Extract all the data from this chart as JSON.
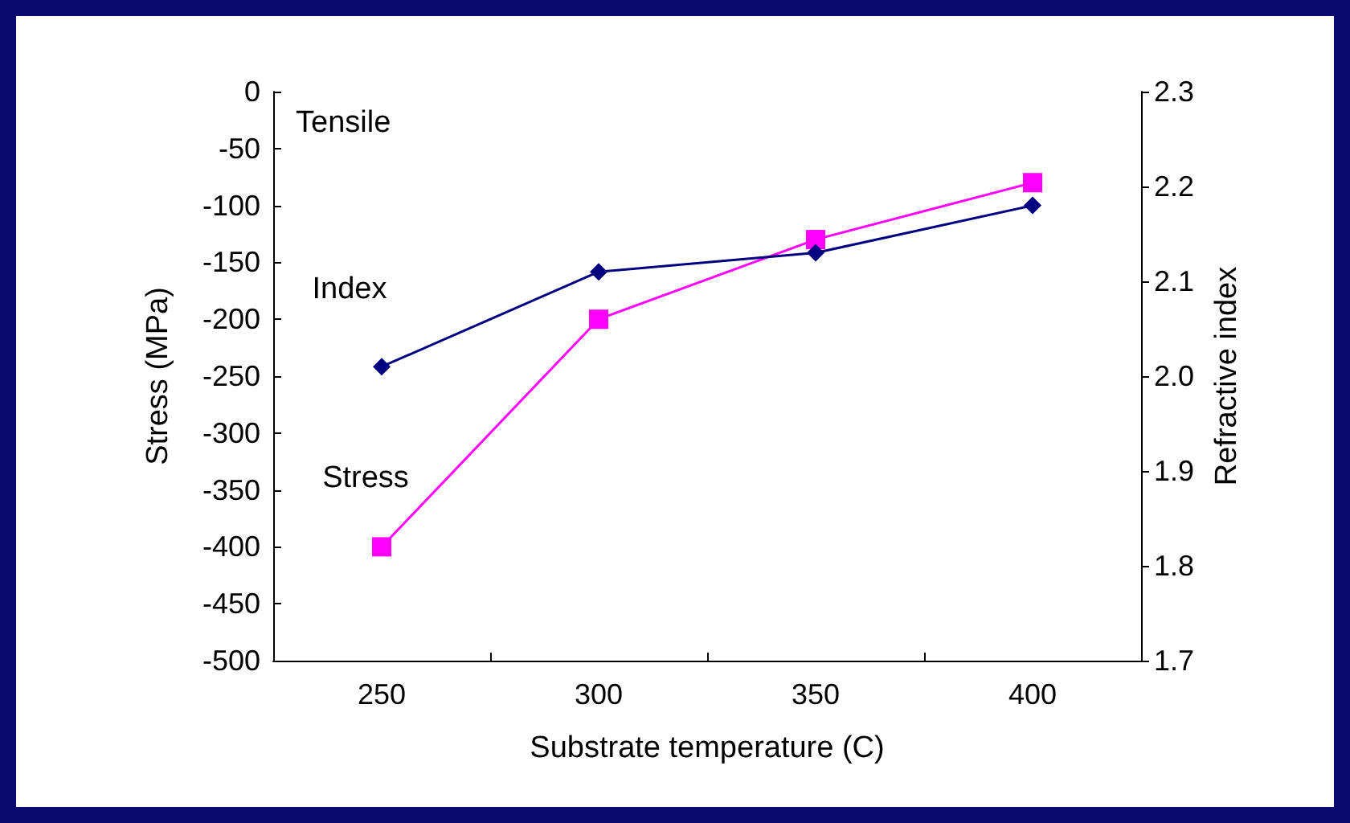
{
  "chart_data": {
    "type": "line",
    "xlabel": "Substrate temperature (C)",
    "ylabel": "Stress (MPa)",
    "y2label": "Refractive index",
    "categories": [
      "250",
      "300",
      "350",
      "400"
    ],
    "series": [
      {
        "name": "Stress",
        "color": "#ff00ff",
        "marker": "square",
        "values": [
          -400,
          -200,
          -130,
          -80
        ]
      },
      {
        "name": "Index",
        "color": "#000080",
        "marker": "diamond",
        "axis": "y2",
        "values": [
          2.01,
          2.11,
          2.13,
          2.18
        ]
      }
    ],
    "ylim": [
      -500,
      0
    ],
    "yticks": [
      -500,
      -450,
      -400,
      -350,
      -300,
      -250,
      -200,
      -150,
      -100,
      -50,
      0
    ],
    "y2lim": [
      1.7,
      2.3
    ],
    "y2ticks": [
      1.7,
      1.8,
      1.9,
      {
        "value": 2,
        "label": "2.0"
      },
      2.1,
      2.2,
      2.3
    ],
    "annotations": [
      "Tensile"
    ],
    "grid": false,
    "legend": false,
    "line_style": "solid"
  }
}
